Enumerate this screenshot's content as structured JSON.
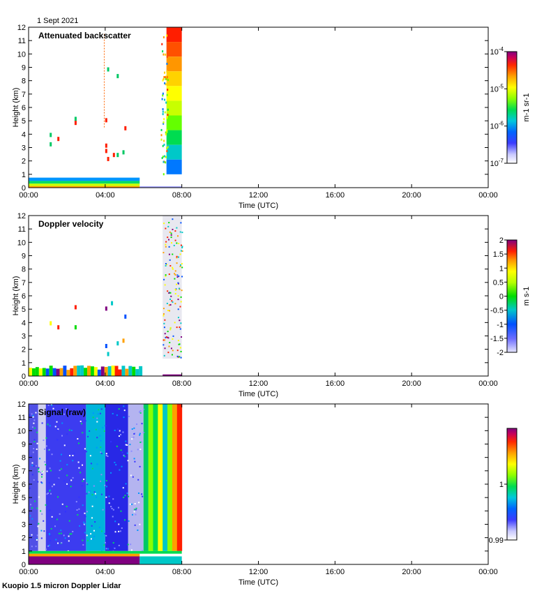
{
  "date_label": "1 Sept 2021",
  "footer_label": "Kuopio 1.5 micron Doppler Lidar",
  "chart_data": [
    {
      "type": "heatmap",
      "title": "Attenuated backscatter",
      "xlabel": "Time (UTC)",
      "ylabel": "Height (km)",
      "xlim": [
        0,
        24
      ],
      "ylim": [
        0,
        12
      ],
      "x_ticks": [
        0,
        4,
        8,
        12,
        16,
        20,
        24
      ],
      "x_tick_labels": [
        "00:00",
        "04:00",
        "08:00",
        "12:00",
        "16:00",
        "20:00",
        "00:00"
      ],
      "y_ticks": [
        0,
        1,
        2,
        3,
        4,
        5,
        6,
        7,
        8,
        9,
        10,
        11,
        12
      ],
      "y_tick_labels": [
        "0",
        "1",
        "2",
        "3",
        "4",
        "5",
        "6",
        "7",
        "8",
        "9",
        "10",
        "11",
        "12"
      ],
      "colorbar": {
        "label": "m-1 sr-1",
        "scale": "log",
        "range": [
          1e-07,
          0.0001
        ],
        "tick_labels": [
          "10-7",
          "10-6",
          "10-5",
          "10-4"
        ]
      },
      "data_coverage_hours": [
        0,
        8
      ]
    },
    {
      "type": "heatmap",
      "title": "Doppler velocity",
      "xlabel": "Time (UTC)",
      "ylabel": "Height (km)",
      "xlim": [
        0,
        24
      ],
      "ylim": [
        0,
        12
      ],
      "x_ticks": [
        0,
        4,
        8,
        12,
        16,
        20,
        24
      ],
      "x_tick_labels": [
        "00:00",
        "04:00",
        "08:00",
        "12:00",
        "16:00",
        "20:00",
        "00:00"
      ],
      "y_ticks": [
        0,
        1,
        2,
        3,
        4,
        5,
        6,
        7,
        8,
        9,
        10,
        11,
        12
      ],
      "y_tick_labels": [
        "0",
        "1",
        "2",
        "3",
        "4",
        "5",
        "6",
        "7",
        "8",
        "9",
        "10",
        "11",
        "12"
      ],
      "colorbar": {
        "label": "m s-1",
        "scale": "linear",
        "range": [
          -2,
          2
        ],
        "tick_labels": [
          "2",
          "1.5",
          "1",
          "0.5",
          "0",
          "-0.5",
          "-1",
          "-1.5",
          "-2"
        ]
      },
      "data_coverage_hours": [
        0,
        8
      ]
    },
    {
      "type": "heatmap",
      "title": "Signal (raw)",
      "xlabel": "Time (UTC)",
      "ylabel": "Height (km)",
      "xlim": [
        0,
        24
      ],
      "ylim": [
        0,
        12
      ],
      "x_ticks": [
        0,
        4,
        8,
        12,
        16,
        20,
        24
      ],
      "x_tick_labels": [
        "00:00",
        "04:00",
        "08:00",
        "12:00",
        "16:00",
        "20:00",
        "00:00"
      ],
      "y_ticks": [
        0,
        1,
        2,
        3,
        4,
        5,
        6,
        7,
        8,
        9,
        10,
        11,
        12
      ],
      "y_tick_labels": [
        "0",
        "1",
        "2",
        "3",
        "4",
        "5",
        "6",
        "7",
        "8",
        "9",
        "10",
        "11",
        "12"
      ],
      "colorbar": {
        "label": "",
        "scale": "linear",
        "range": [
          0.99,
          1.01
        ],
        "tick_labels": [
          "1",
          "0.99"
        ]
      },
      "data_coverage_hours": [
        0,
        8
      ]
    }
  ]
}
